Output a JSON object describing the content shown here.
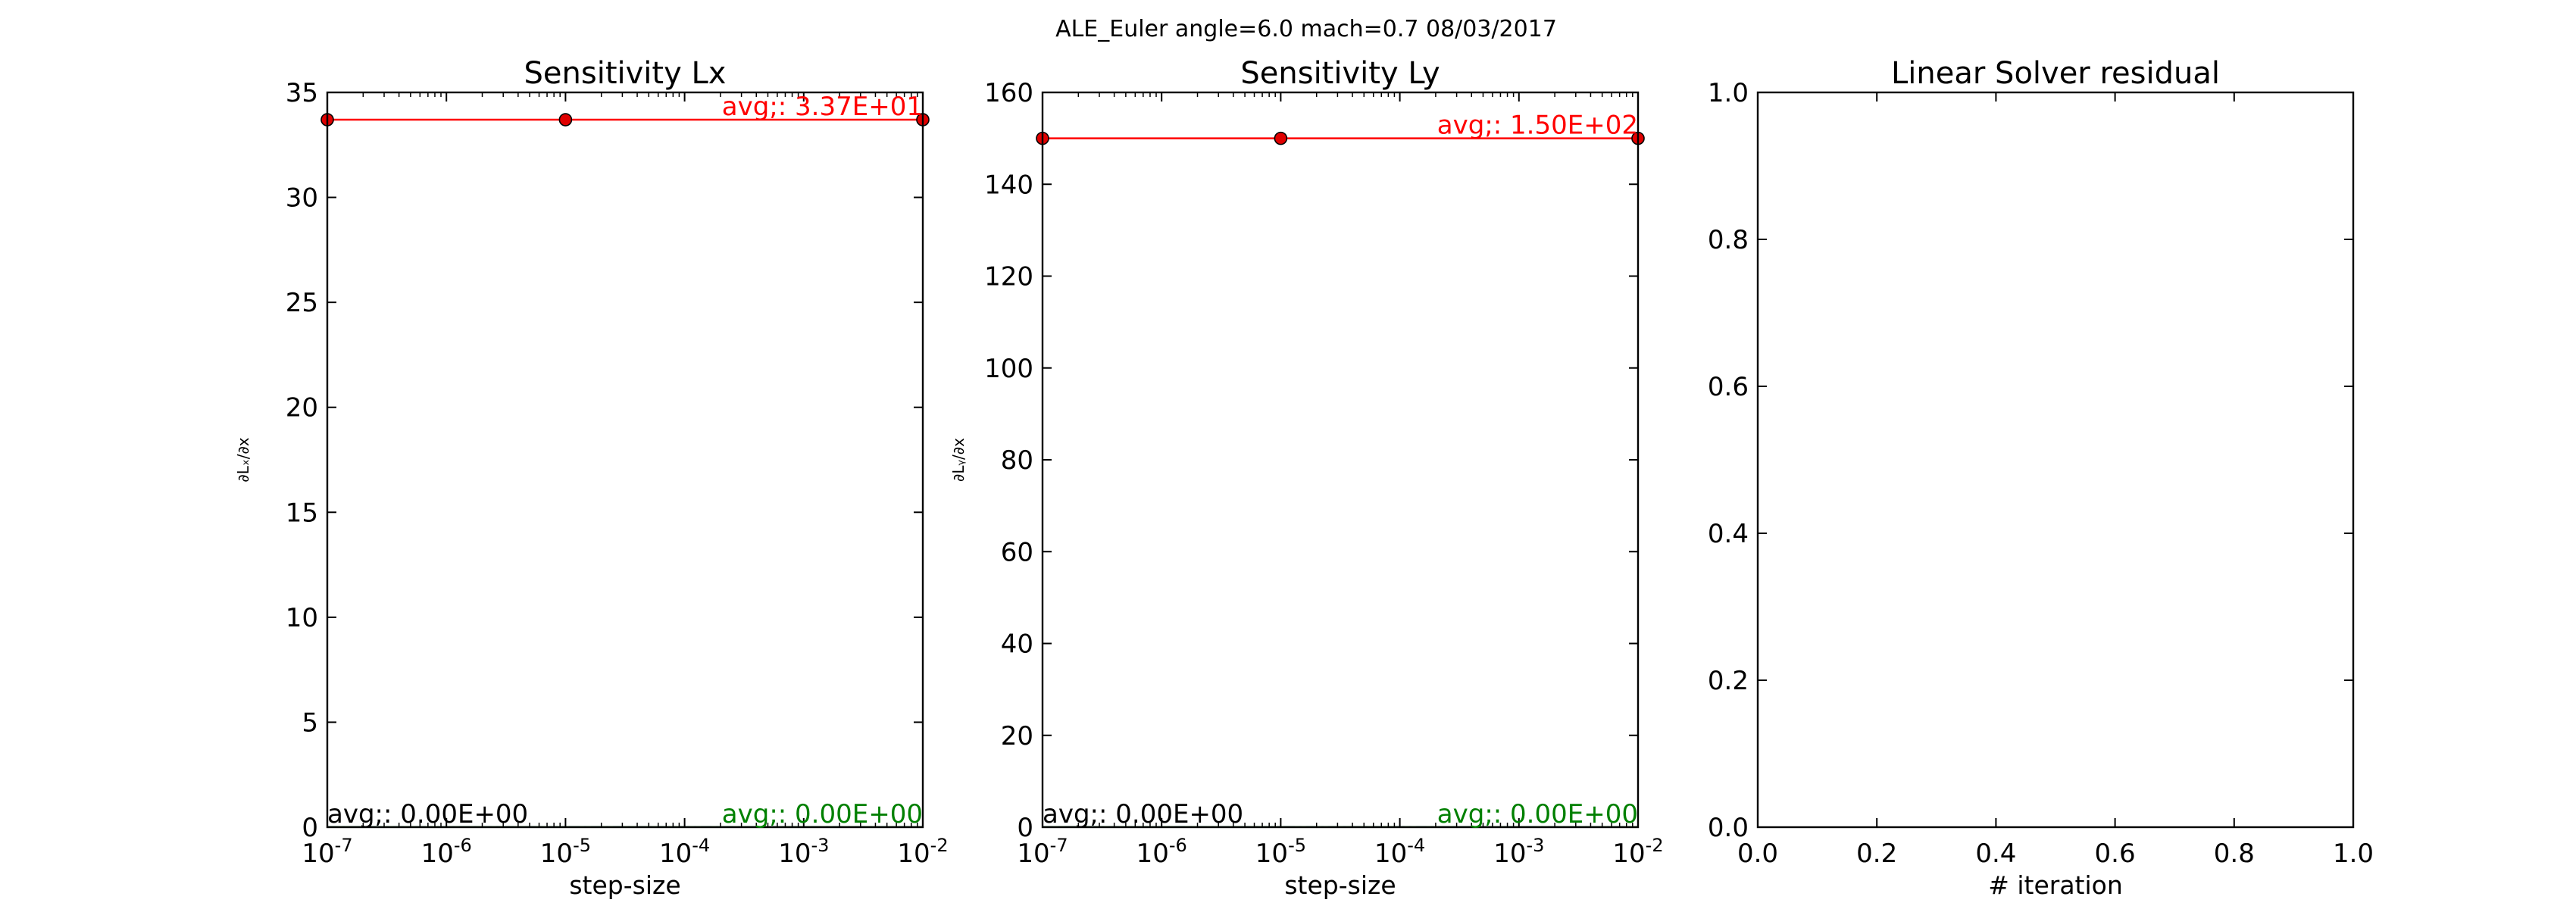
{
  "figure": {
    "suptitle": "ALE_Euler  angle=6.0 mach=0.7 08/03/2017"
  },
  "colors": {
    "red": "#ff0000",
    "green": "#008000",
    "blue": "#0000ff",
    "black": "#000000",
    "marker_fill": "#e00000"
  },
  "chart_data": [
    {
      "type": "line",
      "title": "Sensitivity Lx",
      "xlabel": "step-size",
      "ylabel": "∂Lₓ/∂x",
      "xscale": "log",
      "xlim": [
        1e-07,
        0.01
      ],
      "ylim": [
        0,
        35
      ],
      "xticks": [
        {
          "value": 1e-07,
          "base": "10",
          "exp": "-7"
        },
        {
          "value": 1e-06,
          "base": "10",
          "exp": "-6"
        },
        {
          "value": 1e-05,
          "base": "10",
          "exp": "-5"
        },
        {
          "value": 0.0001,
          "base": "10",
          "exp": "-4"
        },
        {
          "value": 0.001,
          "base": "10",
          "exp": "-3"
        },
        {
          "value": 0.01,
          "base": "10",
          "exp": "-2"
        }
      ],
      "yticks": [
        {
          "value": 0,
          "label": "0"
        },
        {
          "value": 5,
          "label": "5"
        },
        {
          "value": 10,
          "label": "10"
        },
        {
          "value": 15,
          "label": "15"
        },
        {
          "value": 20,
          "label": "20"
        },
        {
          "value": 25,
          "label": "25"
        },
        {
          "value": 30,
          "label": "30"
        },
        {
          "value": 35,
          "label": "35"
        }
      ],
      "grid": false,
      "series": [
        {
          "x": [
            1e-07,
            1e-05,
            0.01
          ],
          "y": [
            33.7,
            33.7,
            33.7
          ],
          "color": "red",
          "style": "solid",
          "marker": "circle"
        },
        {
          "x": [
            1e-07,
            1e-05,
            0.01
          ],
          "y": [
            0,
            0,
            0
          ],
          "color": "blue",
          "style": "dashdot",
          "marker": "none"
        },
        {
          "x": [
            1e-07,
            1e-05,
            0.01
          ],
          "y": [
            0,
            0,
            0
          ],
          "color": "black",
          "style": "solid",
          "marker": "none"
        },
        {
          "x": [
            1e-07,
            1e-05,
            0.01
          ],
          "y": [
            0,
            0,
            0
          ],
          "color": "green",
          "style": "solid",
          "marker": "none"
        }
      ],
      "annotations": [
        {
          "text": "avg;: 3.37E+01",
          "color": "red",
          "anchor": "end",
          "x": 0.01,
          "y": 33.7
        },
        {
          "text": "avg;: 0.00E+00",
          "color": "black",
          "anchor": "start",
          "x": 1e-07,
          "y": 0
        },
        {
          "text": "avg;: 0.00E+00",
          "color": "green",
          "anchor": "end",
          "x": 0.01,
          "y": 0
        }
      ]
    },
    {
      "type": "line",
      "title": "Sensitivity Ly",
      "xlabel": "step-size",
      "ylabel": "∂Lᵧ/∂x",
      "xscale": "log",
      "xlim": [
        1e-07,
        0.01
      ],
      "ylim": [
        0,
        160
      ],
      "xticks": [
        {
          "value": 1e-07,
          "base": "10",
          "exp": "-7"
        },
        {
          "value": 1e-06,
          "base": "10",
          "exp": "-6"
        },
        {
          "value": 1e-05,
          "base": "10",
          "exp": "-5"
        },
        {
          "value": 0.0001,
          "base": "10",
          "exp": "-4"
        },
        {
          "value": 0.001,
          "base": "10",
          "exp": "-3"
        },
        {
          "value": 0.01,
          "base": "10",
          "exp": "-2"
        }
      ],
      "yticks": [
        {
          "value": 0,
          "label": "0"
        },
        {
          "value": 20,
          "label": "20"
        },
        {
          "value": 40,
          "label": "40"
        },
        {
          "value": 60,
          "label": "60"
        },
        {
          "value": 80,
          "label": "80"
        },
        {
          "value": 100,
          "label": "100"
        },
        {
          "value": 120,
          "label": "120"
        },
        {
          "value": 140,
          "label": "140"
        },
        {
          "value": 160,
          "label": "160"
        }
      ],
      "grid": false,
      "series": [
        {
          "x": [
            1e-07,
            1e-05,
            0.01
          ],
          "y": [
            150,
            150,
            150
          ],
          "color": "red",
          "style": "solid",
          "marker": "circle"
        },
        {
          "x": [
            1e-07,
            1e-05,
            0.01
          ],
          "y": [
            0,
            0,
            0
          ],
          "color": "blue",
          "style": "dashdot",
          "marker": "none"
        },
        {
          "x": [
            1e-07,
            1e-05,
            0.01
          ],
          "y": [
            0,
            0,
            0
          ],
          "color": "black",
          "style": "solid",
          "marker": "none"
        },
        {
          "x": [
            1e-07,
            1e-05,
            0.01
          ],
          "y": [
            0,
            0,
            0
          ],
          "color": "green",
          "style": "solid",
          "marker": "none"
        }
      ],
      "annotations": [
        {
          "text": "avg;: 1.50E+02",
          "color": "red",
          "anchor": "end",
          "x": 0.01,
          "y": 150
        },
        {
          "text": "avg;: 0.00E+00",
          "color": "black",
          "anchor": "start",
          "x": 1e-07,
          "y": 0
        },
        {
          "text": "avg;: 0.00E+00",
          "color": "green",
          "anchor": "end",
          "x": 0.01,
          "y": 0
        }
      ]
    },
    {
      "type": "line",
      "title": "Linear Solver residual",
      "xlabel": "# iteration",
      "ylabel": "",
      "xscale": "linear",
      "xlim": [
        0,
        1
      ],
      "ylim": [
        0,
        1
      ],
      "xticks": [
        {
          "value": 0,
          "label": "0.0"
        },
        {
          "value": 0.2,
          "label": "0.2"
        },
        {
          "value": 0.4,
          "label": "0.4"
        },
        {
          "value": 0.6,
          "label": "0.6"
        },
        {
          "value": 0.8,
          "label": "0.8"
        },
        {
          "value": 1,
          "label": "1.0"
        }
      ],
      "yticks": [
        {
          "value": 0,
          "label": "0.0"
        },
        {
          "value": 0.2,
          "label": "0.2"
        },
        {
          "value": 0.4,
          "label": "0.4"
        },
        {
          "value": 0.6,
          "label": "0.6"
        },
        {
          "value": 0.8,
          "label": "0.8"
        },
        {
          "value": 1,
          "label": "1.0"
        }
      ],
      "grid": false,
      "series": [],
      "annotations": []
    }
  ]
}
